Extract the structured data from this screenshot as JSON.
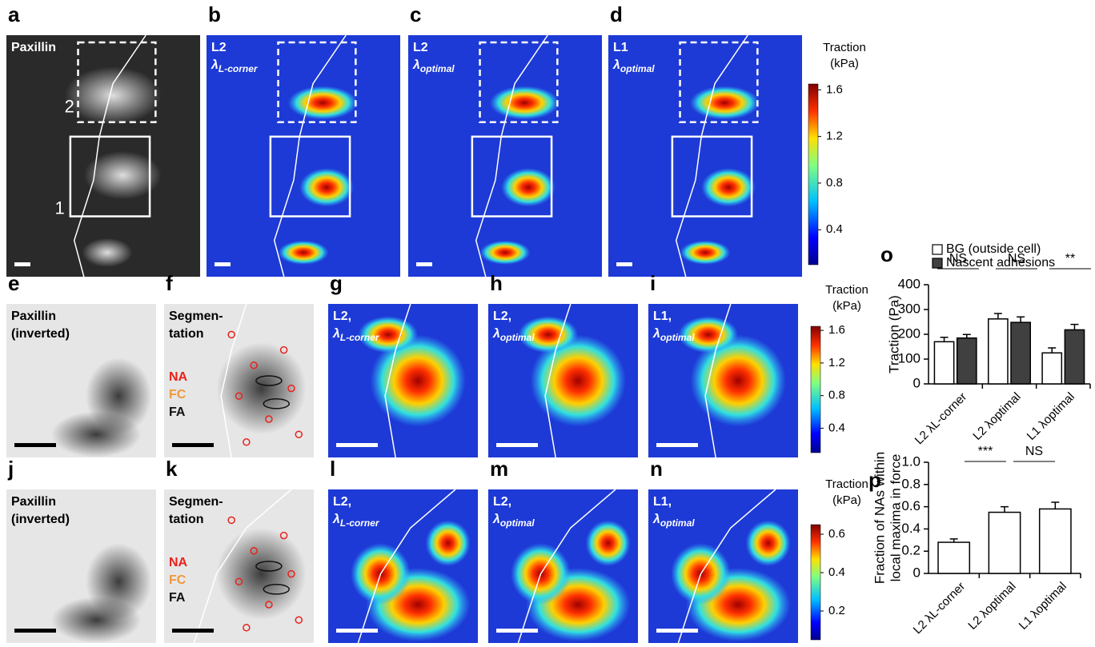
{
  "panels": [
    {
      "letter": "a",
      "labels": [
        [
          "Paxillin"
        ]
      ],
      "notes": [
        "2",
        "1"
      ]
    },
    {
      "letter": "b",
      "labels": [
        [
          "L2"
        ],
        [
          "λ",
          "L-corner"
        ]
      ]
    },
    {
      "letter": "c",
      "labels": [
        [
          "L2"
        ],
        [
          "λ",
          "optimal"
        ]
      ]
    },
    {
      "letter": "d",
      "labels": [
        [
          "L1"
        ],
        [
          "λ",
          "optimal"
        ]
      ]
    },
    {
      "letter": "e",
      "labels": [
        [
          "Paxillin"
        ],
        [
          "(inverted)"
        ]
      ]
    },
    {
      "letter": "f",
      "labels": [
        [
          "Segmen-"
        ],
        [
          "tation"
        ]
      ],
      "legend": [
        {
          "text": "NA",
          "color": "#e8211b"
        },
        {
          "text": "FC",
          "color": "#f0973a"
        },
        {
          "text": "FA",
          "color": "#111111"
        }
      ]
    },
    {
      "letter": "g",
      "labels": [
        [
          "L2,"
        ],
        [
          "λ",
          "L-corner"
        ]
      ]
    },
    {
      "letter": "h",
      "labels": [
        [
          "L2,"
        ],
        [
          "λ",
          "optimal"
        ]
      ]
    },
    {
      "letter": "i",
      "labels": [
        [
          "L1,"
        ],
        [
          "λ",
          "optimal"
        ]
      ]
    },
    {
      "letter": "j",
      "labels": [
        [
          "Paxillin"
        ],
        [
          "(inverted)"
        ]
      ]
    },
    {
      "letter": "k",
      "labels": [
        [
          "Segmen-"
        ],
        [
          "tation"
        ]
      ],
      "legend": [
        {
          "text": "NA",
          "color": "#e8211b"
        },
        {
          "text": "FC",
          "color": "#f0973a"
        },
        {
          "text": "FA",
          "color": "#111111"
        }
      ]
    },
    {
      "letter": "l",
      "labels": [
        [
          "L2,"
        ],
        [
          "λ",
          "L-corner"
        ]
      ]
    },
    {
      "letter": "m",
      "labels": [
        [
          "L2,"
        ],
        [
          "λ",
          "optimal"
        ]
      ]
    },
    {
      "letter": "n",
      "labels": [
        [
          "L1,"
        ],
        [
          "λ",
          "optimal"
        ]
      ]
    }
  ],
  "colorbars": [
    {
      "title": [
        "Traction",
        "(kPa)"
      ],
      "lim": [
        0.1,
        1.65
      ],
      "ticks": [
        0.4,
        0.8,
        1.2,
        1.6
      ]
    },
    {
      "title": [
        "Traction",
        "(kPa)"
      ],
      "lim": [
        0.1,
        1.65
      ],
      "ticks": [
        0.4,
        0.8,
        1.2,
        1.6
      ]
    },
    {
      "title": [
        "Traction",
        "(kPa)"
      ],
      "lim": [
        0.05,
        0.65
      ],
      "ticks": [
        0.2,
        0.4,
        0.6
      ]
    }
  ],
  "chart_data": [
    {
      "type": "bar",
      "letter": "o",
      "ylabel": [
        "Traction (Pa)"
      ],
      "categories": [
        "L2 λL-corner",
        "L2 λoptimal",
        "L1 λoptimal"
      ],
      "series": [
        {
          "name": "BG (outside cell)",
          "color": "#ffffff",
          "values": [
            170,
            262,
            125
          ],
          "errors": [
            18,
            22,
            20
          ]
        },
        {
          "name": "Nascent adhesions",
          "color": "#404040",
          "values": [
            185,
            248,
            218
          ],
          "errors": [
            14,
            22,
            22
          ]
        }
      ],
      "ylim": [
        0,
        400
      ],
      "yticks": [
        0,
        100,
        200,
        300,
        400
      ],
      "annotations": [
        "NS",
        "NS",
        "**"
      ]
    },
    {
      "type": "bar",
      "letter": "p",
      "ylabel": [
        "Fraction of NAs within",
        "local maxima in force"
      ],
      "categories": [
        "L2 λL-corner",
        "L2 λoptimal",
        "L1 λoptimal"
      ],
      "color": "#ffffff",
      "values": [
        0.28,
        0.55,
        0.58
      ],
      "errors": [
        0.03,
        0.05,
        0.06
      ],
      "ylim": [
        0,
        1
      ],
      "yticks": [
        0,
        0.2,
        0.4,
        0.6,
        0.8,
        {
          "value": 1,
          "label": "1.0"
        }
      ],
      "annotations": [
        "***",
        "NS"
      ]
    }
  ]
}
